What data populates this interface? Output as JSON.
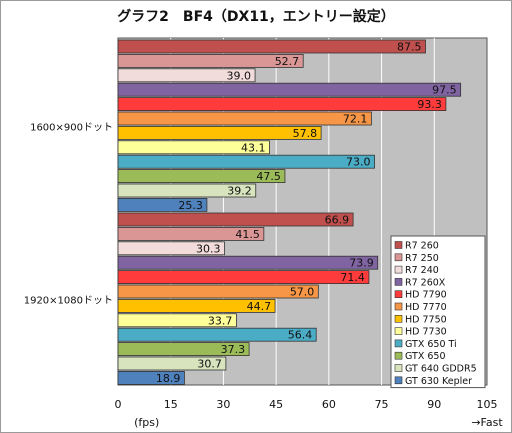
{
  "chart_data": {
    "type": "bar",
    "orientation": "horizontal",
    "title": "グラフ2　BF4（DX11，エントリー設定）",
    "xlabel": "(fps)",
    "x_far_label": "→Fast",
    "xlim": [
      0,
      105
    ],
    "xticks": [
      0,
      15,
      30,
      45,
      60,
      75,
      90,
      105
    ],
    "grid": true,
    "legend_position": "bottom-right",
    "groups": [
      "1600×900ドット",
      "1920×1080ドット"
    ],
    "series": [
      {
        "name": "R7 260",
        "color": "#c0504d",
        "values": [
          87.5,
          66.9
        ]
      },
      {
        "name": "R7 250",
        "color": "#d99694",
        "values": [
          52.7,
          41.5
        ]
      },
      {
        "name": "R7 240",
        "color": "#f2dcdb",
        "values": [
          39.0,
          30.3
        ]
      },
      {
        "name": "R7 260X",
        "color": "#8064a2",
        "values": [
          97.5,
          73.9
        ]
      },
      {
        "name": "HD 7790",
        "color": "#ff3b3b",
        "values": [
          93.3,
          71.4
        ]
      },
      {
        "name": "HD 7770",
        "color": "#f79646",
        "values": [
          72.1,
          57.0
        ]
      },
      {
        "name": "HD 7750",
        "color": "#ffc000",
        "values": [
          57.8,
          44.7
        ]
      },
      {
        "name": "HD 7730",
        "color": "#ffff99",
        "values": [
          43.1,
          33.7
        ]
      },
      {
        "name": "GTX 650 Ti",
        "color": "#4bacc6",
        "values": [
          73.0,
          56.4
        ]
      },
      {
        "name": "GTX 650",
        "color": "#9bbb59",
        "values": [
          47.5,
          37.3
        ]
      },
      {
        "name": "GT 640 GDDR5",
        "color": "#d7e4bd",
        "values": [
          39.2,
          30.7
        ]
      },
      {
        "name": "GT 630 Kepler",
        "color": "#4f81bd",
        "values": [
          25.3,
          18.9
        ]
      }
    ]
  }
}
